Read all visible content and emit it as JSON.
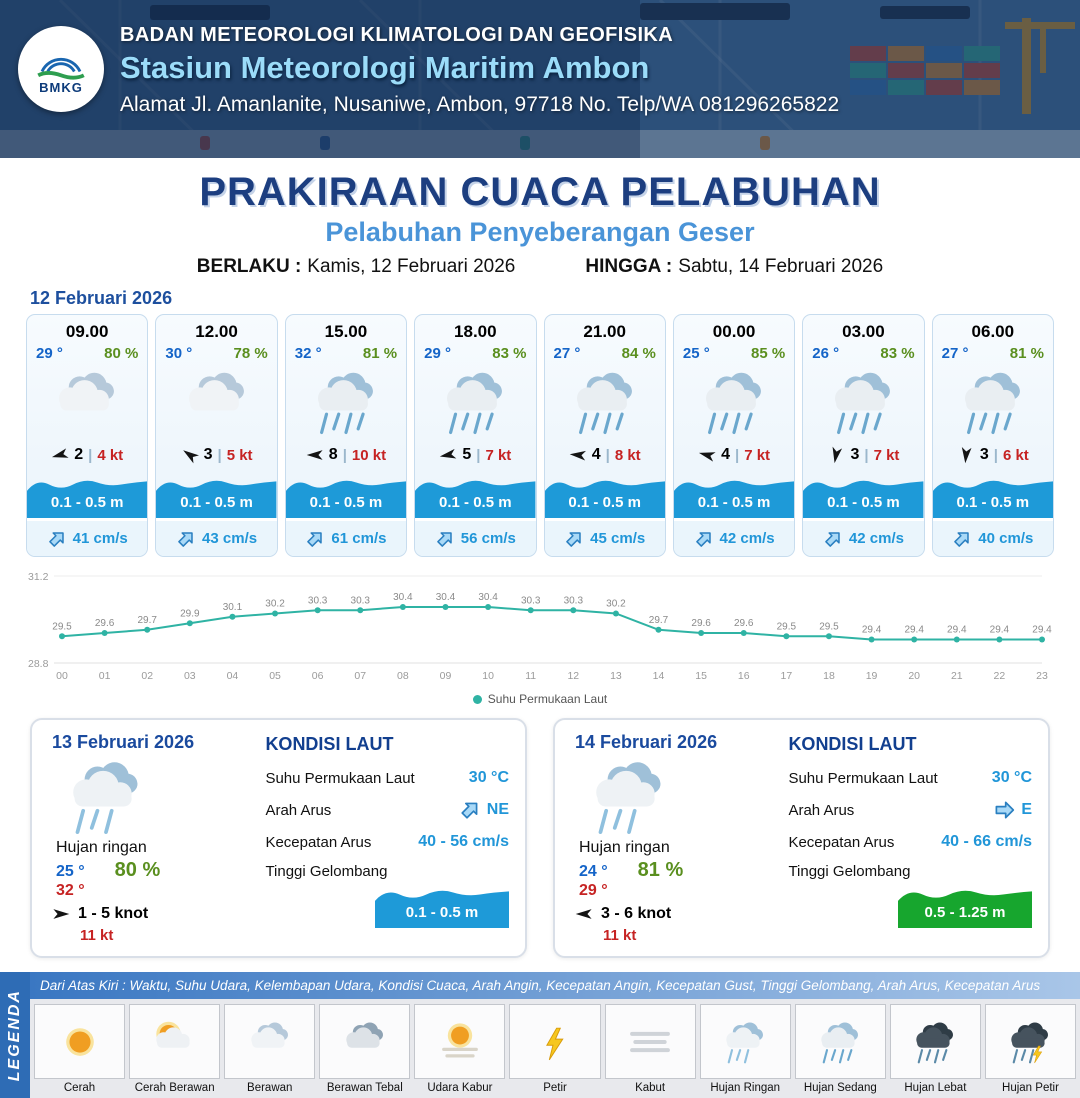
{
  "header": {
    "org": "BADAN METEOROLOGI KLIMATOLOGI DAN GEOFISIKA",
    "station": "Stasiun Meteorologi Maritim Ambon",
    "address": "Alamat Jl. Amanlanite, Nusaniwe, Ambon, 97718   No. Telp/WA  081296265822",
    "logo": "BMKG"
  },
  "title": {
    "main": "PRAKIRAAN CUACA PELABUHAN",
    "subtitle": "Pelabuhan Penyeberangan Geser",
    "valid_from_label": "BERLAKU :",
    "valid_from": "Kamis, 12 Februari 2026",
    "valid_to_label": "HINGGA :",
    "valid_to": "Sabtu, 14 Februari 2026"
  },
  "hourly": {
    "date_label": "12 Februari 2026",
    "cards": [
      {
        "time": "09.00",
        "temp": "29 °",
        "humidity": "80 %",
        "icon": "berawan",
        "wind_dir_deg": 165,
        "wind_speed": "2",
        "wind_gust": "4 kt",
        "wave_height": "0.1 - 0.5 m",
        "current_dir_deg": -45,
        "current_speed": "41 cm/s"
      },
      {
        "time": "12.00",
        "temp": "30 °",
        "humidity": "78 %",
        "icon": "berawan",
        "wind_dir_deg": 215,
        "wind_speed": "3",
        "wind_gust": "5 kt",
        "wave_height": "0.1 - 0.5 m",
        "current_dir_deg": -45,
        "current_speed": "43 cm/s"
      },
      {
        "time": "15.00",
        "temp": "32 °",
        "humidity": "81 %",
        "icon": "hujan-sedang",
        "wind_dir_deg": 180,
        "wind_speed": "8",
        "wind_gust": "10 kt",
        "wave_height": "0.1 - 0.5 m",
        "current_dir_deg": -45,
        "current_speed": "61 cm/s"
      },
      {
        "time": "18.00",
        "temp": "29 °",
        "humidity": "83 %",
        "icon": "hujan-sedang",
        "wind_dir_deg": 170,
        "wind_speed": "5",
        "wind_gust": "7 kt",
        "wave_height": "0.1 - 0.5 m",
        "current_dir_deg": -45,
        "current_speed": "56 cm/s"
      },
      {
        "time": "21.00",
        "temp": "27 °",
        "humidity": "84 %",
        "icon": "hujan-sedang",
        "wind_dir_deg": 185,
        "wind_speed": "4",
        "wind_gust": "8 kt",
        "wave_height": "0.1 - 0.5 m",
        "current_dir_deg": -45,
        "current_speed": "45 cm/s"
      },
      {
        "time": "00.00",
        "temp": "25 °",
        "humidity": "85 %",
        "icon": "hujan-sedang",
        "wind_dir_deg": 195,
        "wind_speed": "4",
        "wind_gust": "7 kt",
        "wave_height": "0.1 - 0.5 m",
        "current_dir_deg": -45,
        "current_speed": "42 cm/s"
      },
      {
        "time": "03.00",
        "temp": "26 °",
        "humidity": "83 %",
        "icon": "hujan-sedang",
        "wind_dir_deg": 100,
        "wind_speed": "3",
        "wind_gust": "7 kt",
        "wave_height": "0.1 - 0.5 m",
        "current_dir_deg": -45,
        "current_speed": "42 cm/s"
      },
      {
        "time": "06.00",
        "temp": "27 °",
        "humidity": "81 %",
        "icon": "hujan-sedang",
        "wind_dir_deg": 95,
        "wind_speed": "3",
        "wind_gust": "6 kt",
        "wave_height": "0.1 - 0.5 m",
        "current_dir_deg": -45,
        "current_speed": "40 cm/s"
      }
    ]
  },
  "chart_data": {
    "type": "line",
    "legend": "Suhu Permukaan Laut",
    "x": [
      "00",
      "01",
      "02",
      "03",
      "04",
      "05",
      "06",
      "07",
      "08",
      "09",
      "10",
      "11",
      "12",
      "13",
      "14",
      "15",
      "16",
      "17",
      "18",
      "19",
      "20",
      "21",
      "22",
      "23"
    ],
    "values": [
      29.5,
      29.6,
      29.7,
      29.9,
      30.1,
      30.2,
      30.3,
      30.3,
      30.4,
      30.4,
      30.4,
      30.3,
      30.3,
      30.2,
      29.7,
      29.6,
      29.6,
      29.5,
      29.5,
      29.4,
      29.4,
      29.4,
      29.4,
      29.4
    ],
    "ylim": [
      28.8,
      31.2
    ],
    "line_color": "#2fb3a4",
    "xlabel": "",
    "ylabel": ""
  },
  "daily": {
    "cards": [
      {
        "date": "13 Februari 2026",
        "icon": "hujan-ringan",
        "condition": "Hujan ringan",
        "temp_min": "25 °",
        "temp_max": "32 °",
        "humidity": "80 %",
        "wind_dir_deg": 0,
        "wind_range": "1 - 5 knot",
        "wind_gust": "11 kt",
        "sea": {
          "title": "KONDISI LAUT",
          "sst_label": "Suhu Permukaan Laut",
          "sst_value": "30 °C",
          "dir_label": "Arah Arus",
          "dir_value": "NE",
          "dir_deg": -45,
          "speed_label": "Kecepatan Arus",
          "speed_value": "40 - 56 cm/s",
          "wave_label": "Tinggi Gelombang",
          "wave_value": "0.1 - 0.5 m",
          "wave_color": "#1e9ad8"
        }
      },
      {
        "date": "14 Februari 2026",
        "icon": "hujan-ringan",
        "condition": "Hujan ringan",
        "temp_min": "24 °",
        "temp_max": "29 °",
        "humidity": "81 %",
        "wind_dir_deg": 180,
        "wind_range": "3 - 6 knot",
        "wind_gust": "11 kt",
        "sea": {
          "title": "KONDISI LAUT",
          "sst_label": "Suhu Permukaan Laut",
          "sst_value": "30 °C",
          "dir_label": "Arah Arus",
          "dir_value": "E",
          "dir_deg": 0,
          "speed_label": "Kecepatan Arus",
          "speed_value": "40 - 66 cm/s",
          "wave_label": "Tinggi Gelombang",
          "wave_value": "0.5 - 1.25 m",
          "wave_color": "#17a62e"
        }
      }
    ]
  },
  "legend": {
    "sidebar": "LEGENDA",
    "description": "Dari Atas Kiri : Waktu, Suhu Udara, Kelembapan Udara, Kondisi Cuaca, Arah Angin, Kecepatan Angin, Kecepatan Gust, Tinggi Gelombang, Arah Arus, Kecepatan Arus",
    "items": [
      {
        "label": "Cerah",
        "icon": "cerah"
      },
      {
        "label": "Cerah Berawan",
        "icon": "cerah-berawan"
      },
      {
        "label": "Berawan",
        "icon": "berawan"
      },
      {
        "label": "Berawan Tebal",
        "icon": "berawan-tebal"
      },
      {
        "label": "Udara Kabur",
        "icon": "udara-kabur"
      },
      {
        "label": "Petir",
        "icon": "petir"
      },
      {
        "label": "Kabut",
        "icon": "kabut"
      },
      {
        "label": "Hujan Ringan",
        "icon": "hujan-ringan"
      },
      {
        "label": "Hujan Sedang",
        "icon": "hujan-sedang"
      },
      {
        "label": "Hujan Lebat",
        "icon": "hujan-lebat"
      },
      {
        "label": "Hujan Petir",
        "icon": "hujan-petir"
      }
    ]
  },
  "colors": {
    "wave_blue": "#1e9ad8",
    "wave_green": "#17a62e",
    "temp_blue": "#1464c8",
    "humidity_green": "#5a8f1f",
    "gust_red": "#c62323",
    "chart_line": "#2fb3a4",
    "navy": "#1c3e80",
    "subtitle_blue": "#4a94d8"
  }
}
